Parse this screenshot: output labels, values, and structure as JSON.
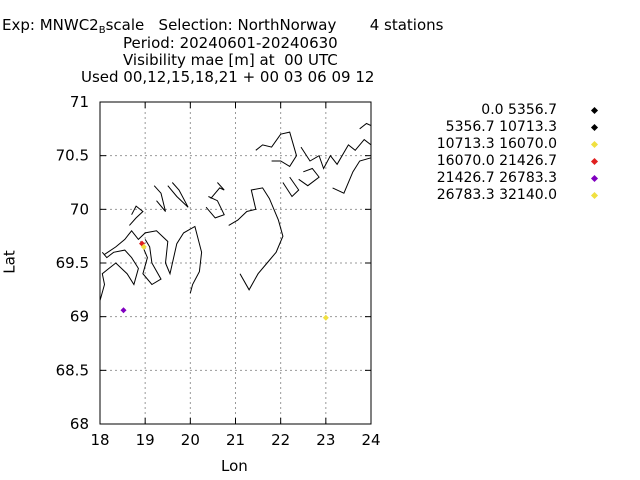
{
  "title": {
    "line1_prefix": "Exp: MNWC2",
    "line1_sub": "B",
    "line1_suffix": "scale   Selection: NorthNorway       4 stations",
    "line2": "Period: 20240601-20240630",
    "line3": "Visibility mae [m] at  00 UTC",
    "line4": "Used 00,12,15,18,21 + 00 03 06 09 12"
  },
  "chart_data": {
    "type": "scatter",
    "xlabel": "Lon",
    "ylabel": "Lat",
    "xlim": [
      18,
      24
    ],
    "ylim": [
      68,
      71
    ],
    "xticks": [
      18,
      19,
      20,
      21,
      22,
      23,
      24
    ],
    "yticks": [
      68,
      68.5,
      69,
      69.5,
      70,
      70.5,
      71
    ],
    "xtick_labels": [
      "18",
      "19",
      "20",
      "21",
      "22",
      "23",
      "24"
    ],
    "ytick_labels": [
      "68",
      "68.5",
      "69",
      "69.5",
      "70",
      "70.5",
      "71"
    ],
    "grid": true,
    "legend_placement": "right",
    "legend": [
      {
        "label": "0.0 5356.7",
        "color": "#000000"
      },
      {
        "label": "5356.7 10713.3",
        "color": "#000000"
      },
      {
        "label": "10713.3 16070.0",
        "color": "#f0e040"
      },
      {
        "label": "16070.0 21426.7",
        "color": "#e02020"
      },
      {
        "label": "21426.7 26783.3",
        "color": "#8000c0"
      },
      {
        "label": "26783.3 32140.0",
        "color": "#f0e040"
      }
    ],
    "points": [
      {
        "lon": 18.93,
        "lat": 69.68,
        "color": "#e02020"
      },
      {
        "lon": 18.97,
        "lat": 69.65,
        "color": "#f0e040"
      },
      {
        "lon": 18.52,
        "lat": 69.06,
        "color": "#8000c0"
      },
      {
        "lon": 23.0,
        "lat": 68.99,
        "color": "#f0e040"
      }
    ],
    "coastline": [
      [
        [
          18.0,
          69.15
        ],
        [
          18.1,
          69.3
        ],
        [
          18.05,
          69.4
        ],
        [
          18.2,
          69.45
        ],
        [
          18.35,
          69.5
        ],
        [
          18.6,
          69.4
        ],
        [
          18.75,
          69.3
        ],
        [
          18.85,
          69.45
        ],
        [
          18.7,
          69.55
        ],
        [
          18.55,
          69.62
        ],
        [
          18.3,
          69.6
        ],
        [
          18.15,
          69.55
        ],
        [
          18.05,
          69.6
        ]
      ],
      [
        [
          18.1,
          69.58
        ],
        [
          18.35,
          69.65
        ],
        [
          18.55,
          69.72
        ],
        [
          18.7,
          69.8
        ],
        [
          18.85,
          69.72
        ],
        [
          19.0,
          69.78
        ],
        [
          19.25,
          69.8
        ],
        [
          19.5,
          69.7
        ],
        [
          19.45,
          69.5
        ],
        [
          19.55,
          69.4
        ],
        [
          19.7,
          69.68
        ],
        [
          19.85,
          69.78
        ],
        [
          20.1,
          69.84
        ],
        [
          20.25,
          69.6
        ],
        [
          20.2,
          69.42
        ],
        [
          20.05,
          69.3
        ],
        [
          20.0,
          69.22
        ]
      ],
      [
        [
          18.9,
          69.7
        ],
        [
          19.05,
          69.55
        ],
        [
          18.95,
          69.4
        ],
        [
          19.15,
          69.3
        ],
        [
          19.35,
          69.35
        ],
        [
          19.15,
          69.5
        ],
        [
          19.1,
          69.65
        ],
        [
          19.0,
          69.72
        ]
      ],
      [
        [
          18.65,
          69.85
        ],
        [
          18.8,
          69.92
        ],
        [
          18.95,
          69.98
        ],
        [
          18.8,
          70.03
        ],
        [
          18.7,
          69.95
        ]
      ],
      [
        [
          19.25,
          70.08
        ],
        [
          19.45,
          69.98
        ],
        [
          19.35,
          70.15
        ],
        [
          19.2,
          70.22
        ]
      ],
      [
        [
          19.5,
          70.22
        ],
        [
          19.7,
          70.12
        ],
        [
          19.95,
          70.02
        ],
        [
          19.75,
          70.18
        ],
        [
          19.6,
          70.25
        ]
      ],
      [
        [
          20.35,
          70.02
        ],
        [
          20.55,
          69.92
        ],
        [
          20.75,
          69.95
        ],
        [
          20.6,
          70.08
        ],
        [
          20.4,
          70.12
        ]
      ],
      [
        [
          20.45,
          70.1
        ],
        [
          20.65,
          70.2
        ],
        [
          20.75,
          70.18
        ],
        [
          20.6,
          70.25
        ]
      ],
      [
        [
          20.85,
          69.85
        ],
        [
          21.05,
          69.9
        ],
        [
          21.25,
          69.98
        ],
        [
          21.45,
          70.0
        ],
        [
          21.35,
          70.18
        ],
        [
          21.6,
          70.2
        ],
        [
          21.75,
          70.1
        ],
        [
          21.95,
          69.9
        ],
        [
          22.05,
          69.75
        ],
        [
          21.9,
          69.6
        ],
        [
          21.7,
          69.5
        ],
        [
          21.5,
          69.4
        ],
        [
          21.3,
          69.25
        ],
        [
          21.1,
          69.4
        ]
      ],
      [
        [
          21.45,
          70.55
        ],
        [
          21.6,
          70.6
        ],
        [
          21.8,
          70.58
        ],
        [
          22.0,
          70.7
        ],
        [
          22.2,
          70.72
        ],
        [
          22.35,
          70.5
        ],
        [
          22.2,
          70.4
        ],
        [
          22.0,
          70.45
        ],
        [
          21.8,
          70.45
        ]
      ],
      [
        [
          22.45,
          70.58
        ],
        [
          22.65,
          70.45
        ],
        [
          22.85,
          70.5
        ],
        [
          22.95,
          70.38
        ],
        [
          23.1,
          70.5
        ],
        [
          23.25,
          70.42
        ],
        [
          23.5,
          70.6
        ],
        [
          23.65,
          70.55
        ],
        [
          23.85,
          70.65
        ],
        [
          24.0,
          70.6
        ]
      ],
      [
        [
          22.4,
          70.28
        ],
        [
          22.6,
          70.22
        ],
        [
          22.85,
          70.3
        ],
        [
          22.7,
          70.38
        ],
        [
          22.5,
          70.35
        ]
      ],
      [
        [
          22.05,
          70.25
        ],
        [
          22.25,
          70.12
        ],
        [
          22.4,
          70.18
        ],
        [
          22.2,
          70.3
        ]
      ],
      [
        [
          23.15,
          70.2
        ],
        [
          23.4,
          70.15
        ],
        [
          23.6,
          70.35
        ],
        [
          23.75,
          70.45
        ],
        [
          24.0,
          70.48
        ]
      ],
      [
        [
          23.75,
          70.75
        ],
        [
          23.9,
          70.8
        ],
        [
          24.0,
          70.78
        ]
      ]
    ]
  }
}
